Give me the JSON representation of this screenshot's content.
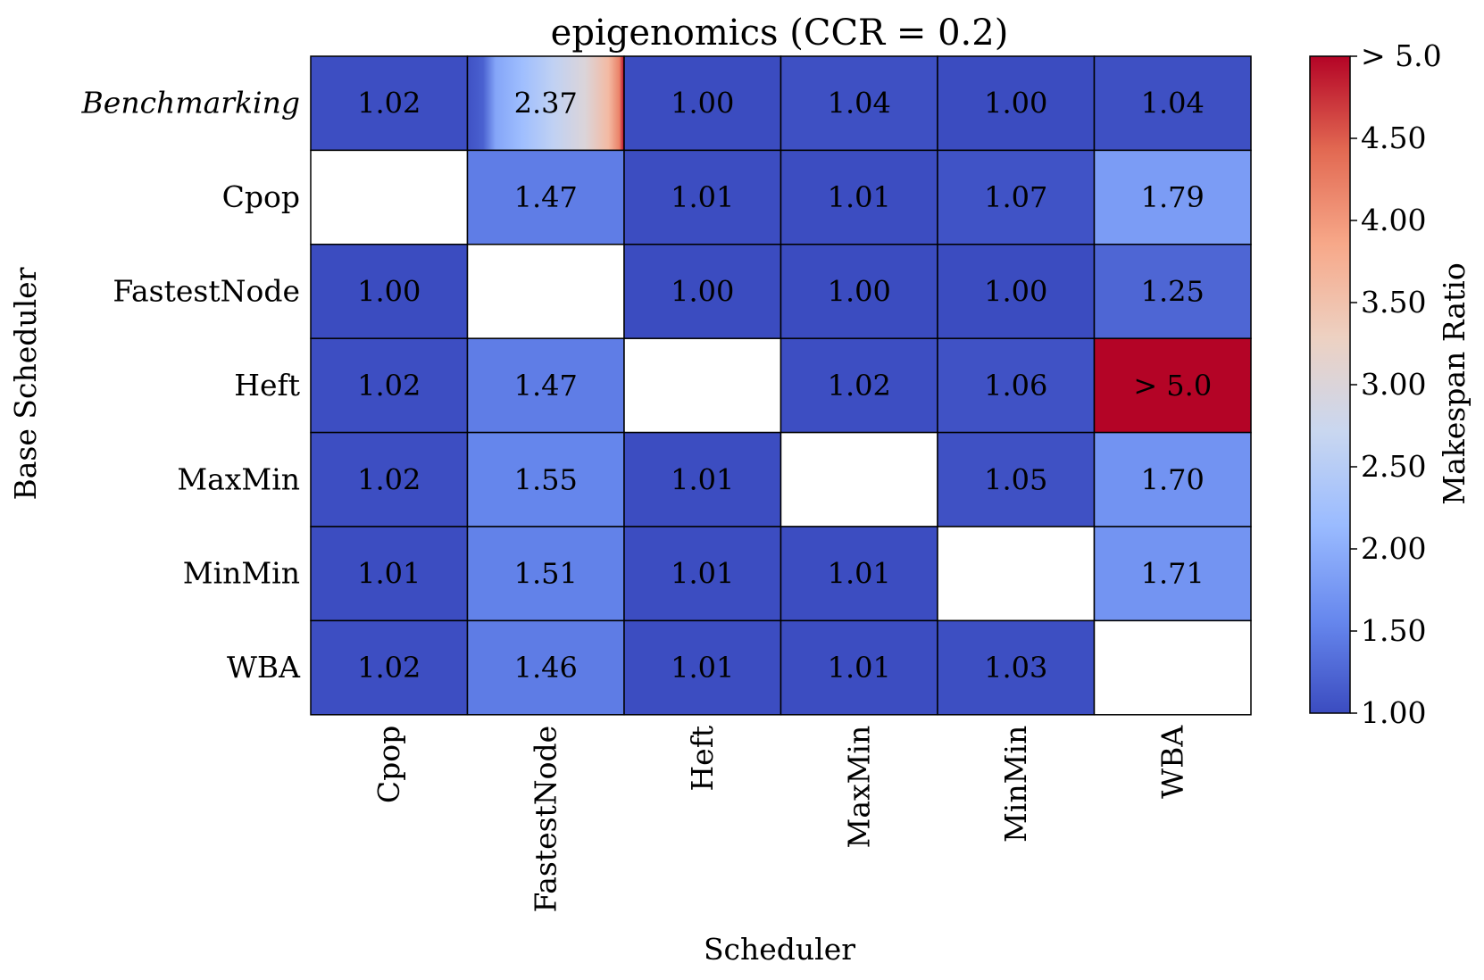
{
  "chart_data": {
    "type": "heatmap",
    "title": "epigenomics (CCR = 0.2)",
    "xlabel": "Scheduler",
    "ylabel": "Base Scheduler",
    "x_categories": [
      "Cpop",
      "FastestNode",
      "Heft",
      "MaxMin",
      "MinMin",
      "WBA"
    ],
    "y_categories": [
      "Benchmarking",
      "Cpop",
      "FastestNode",
      "Heft",
      "MaxMin",
      "MinMin",
      "WBA"
    ],
    "cells": [
      [
        "1.02",
        "2.37",
        "1.00",
        "1.04",
        "1.00",
        "1.04"
      ],
      [
        "",
        "1.47",
        "1.01",
        "1.01",
        "1.07",
        "1.79"
      ],
      [
        "1.00",
        "",
        "1.00",
        "1.00",
        "1.00",
        "1.25"
      ],
      [
        "1.02",
        "1.47",
        "",
        "1.02",
        "1.06",
        "> 5.0"
      ],
      [
        "1.02",
        "1.55",
        "1.01",
        "",
        "1.05",
        "1.70"
      ],
      [
        "1.01",
        "1.51",
        "1.01",
        "1.01",
        "",
        "1.71"
      ],
      [
        "1.02",
        "1.46",
        "1.01",
        "1.01",
        "1.03",
        ""
      ]
    ],
    "values": [
      [
        1.02,
        2.37,
        1.0,
        1.04,
        1.0,
        1.04
      ],
      [
        null,
        1.47,
        1.01,
        1.01,
        1.07,
        1.79
      ],
      [
        1.0,
        null,
        1.0,
        1.0,
        1.0,
        1.25
      ],
      [
        1.02,
        1.47,
        null,
        1.02,
        1.06,
        6.0
      ],
      [
        1.02,
        1.55,
        1.01,
        null,
        1.05,
        1.7
      ],
      [
        1.01,
        1.51,
        1.01,
        1.01,
        null,
        1.71
      ],
      [
        1.02,
        1.46,
        1.01,
        1.01,
        1.03,
        null
      ]
    ],
    "colorbar": {
      "label": "Makespan Ratio",
      "range": [
        1.0,
        5.0
      ],
      "ticks": [
        "1.00",
        "1.50",
        "2.00",
        "2.50",
        "3.00",
        "3.50",
        "4.00",
        "4.50",
        "> 5.0"
      ],
      "colormap": "coolwarm",
      "stops": [
        "#3b4cc0",
        "#6788ee",
        "#9abbff",
        "#c9d7f0",
        "#edd1c2",
        "#f7a889",
        "#e26952",
        "#b40426"
      ]
    }
  }
}
